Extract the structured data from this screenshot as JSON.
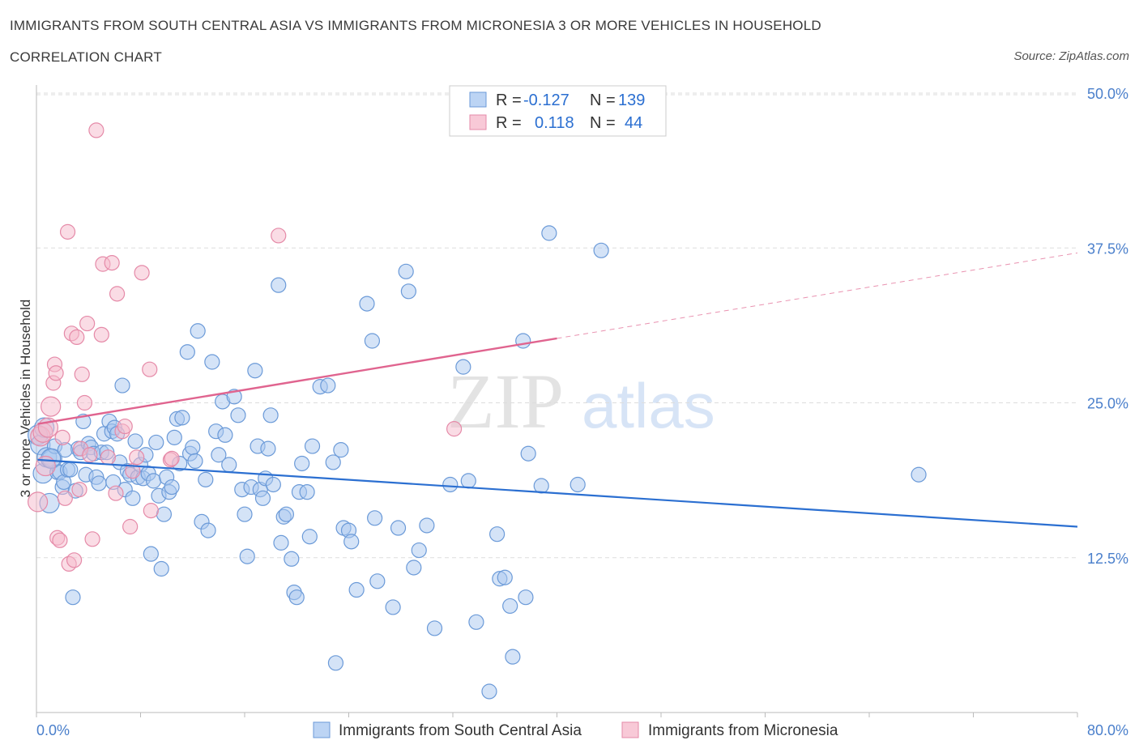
{
  "header": {
    "title": "IMMIGRANTS FROM SOUTH CENTRAL ASIA VS IMMIGRANTS FROM MICRONESIA 3 OR MORE VEHICLES IN HOUSEHOLD",
    "subtitle": "CORRELATION CHART",
    "source": "Source: ZipAtlas.com"
  },
  "watermark": {
    "zip": "ZIP",
    "atlas": "atlas"
  },
  "colors": {
    "blue_fill": "#a9c8f0",
    "blue_stroke": "#6b9ad8",
    "blue_line": "#2b6fd1",
    "pink_fill": "#f5b9cb",
    "pink_stroke": "#e58aa8",
    "pink_line": "#e0648f",
    "tick_text": "#4a7fcb",
    "grid": "#dddddd"
  },
  "legend": {
    "r_label": "R =",
    "n_label": "N =",
    "rows": [
      {
        "r_value": "-0.127",
        "n_value": "139"
      },
      {
        "r_value": "0.118",
        "n_value": "44"
      }
    ]
  },
  "chart_data": {
    "type": "scatter",
    "title": "IMMIGRANTS FROM SOUTH CENTRAL ASIA VS IMMIGRANTS FROM MICRONESIA 3 OR MORE VEHICLES IN HOUSEHOLD",
    "subtitle": "CORRELATION CHART",
    "xlabel": "",
    "ylabel": "3 or more Vehicles in Household",
    "xlim": [
      0,
      80
    ],
    "ylim": [
      0,
      50
    ],
    "x_tick_labels": [
      "0.0%",
      "80.0%"
    ],
    "y_ticks": [
      12.5,
      25.0,
      37.5,
      50.0
    ],
    "y_tick_labels": [
      "12.5%",
      "25.0%",
      "37.5%",
      "50.0%"
    ],
    "grid": true,
    "legend_position": "top-center",
    "series": [
      {
        "name": "Immigrants from South Central Asia",
        "color": "#a9c8f0",
        "r": -0.127,
        "n": 139,
        "trend": {
          "x0": 0.1,
          "y0": 20.4,
          "x1": 80.0,
          "y1": 15.0,
          "dashed_from": null
        },
        "points": [
          [
            0.1,
            22.4
          ],
          [
            0.3,
            21.6
          ],
          [
            0.5,
            19.3
          ],
          [
            0.6,
            23.0
          ],
          [
            0.8,
            20.6
          ],
          [
            1.0,
            16.9
          ],
          [
            1.2,
            20.5
          ],
          [
            1.4,
            21.5
          ],
          [
            1.6,
            19.4
          ],
          [
            1.8,
            19.4
          ],
          [
            2.0,
            18.2
          ],
          [
            2.1,
            18.6
          ],
          [
            2.4,
            19.6
          ],
          [
            2.6,
            19.6
          ],
          [
            2.8,
            9.3
          ],
          [
            3.0,
            17.9
          ],
          [
            3.2,
            21.3
          ],
          [
            3.4,
            21.0
          ],
          [
            3.6,
            23.5
          ],
          [
            3.8,
            19.2
          ],
          [
            4.0,
            21.7
          ],
          [
            4.2,
            21.4
          ],
          [
            4.4,
            20.9
          ],
          [
            4.6,
            19.0
          ],
          [
            4.8,
            18.5
          ],
          [
            5.0,
            21.0
          ],
          [
            5.2,
            22.5
          ],
          [
            5.4,
            21.0
          ],
          [
            5.6,
            23.5
          ],
          [
            5.8,
            22.7
          ],
          [
            6.0,
            23.0
          ],
          [
            6.2,
            22.5
          ],
          [
            6.4,
            20.2
          ],
          [
            6.6,
            26.4
          ],
          [
            6.8,
            18.0
          ],
          [
            7.0,
            19.5
          ],
          [
            7.2,
            19.2
          ],
          [
            7.4,
            17.3
          ],
          [
            7.6,
            21.9
          ],
          [
            7.8,
            19.0
          ],
          [
            8.0,
            20.0
          ],
          [
            8.2,
            18.9
          ],
          [
            8.4,
            20.8
          ],
          [
            8.6,
            19.3
          ],
          [
            8.8,
            12.8
          ],
          [
            9.0,
            18.7
          ],
          [
            9.2,
            21.8
          ],
          [
            9.4,
            17.5
          ],
          [
            9.6,
            11.6
          ],
          [
            9.8,
            16.0
          ],
          [
            10.0,
            19.0
          ],
          [
            10.2,
            17.8
          ],
          [
            10.4,
            18.2
          ],
          [
            10.6,
            22.2
          ],
          [
            10.8,
            23.7
          ],
          [
            11.0,
            20.1
          ],
          [
            11.2,
            23.8
          ],
          [
            11.6,
            29.1
          ],
          [
            11.8,
            20.9
          ],
          [
            12.0,
            21.4
          ],
          [
            12.2,
            20.3
          ],
          [
            12.4,
            30.8
          ],
          [
            12.7,
            15.4
          ],
          [
            13.0,
            18.8
          ],
          [
            13.2,
            14.7
          ],
          [
            13.5,
            28.3
          ],
          [
            13.8,
            22.7
          ],
          [
            14.0,
            20.8
          ],
          [
            14.3,
            25.1
          ],
          [
            14.5,
            22.4
          ],
          [
            14.8,
            20.0
          ],
          [
            15.2,
            25.5
          ],
          [
            15.5,
            24.0
          ],
          [
            15.8,
            18.0
          ],
          [
            16.0,
            16.0
          ],
          [
            16.2,
            12.6
          ],
          [
            16.5,
            18.2
          ],
          [
            16.8,
            27.6
          ],
          [
            17.0,
            21.5
          ],
          [
            17.2,
            18.0
          ],
          [
            17.4,
            17.3
          ],
          [
            17.6,
            18.9
          ],
          [
            17.8,
            21.3
          ],
          [
            18.0,
            24.0
          ],
          [
            18.2,
            18.4
          ],
          [
            18.6,
            34.5
          ],
          [
            18.8,
            13.7
          ],
          [
            19.0,
            15.8
          ],
          [
            19.2,
            16.0
          ],
          [
            19.6,
            12.4
          ],
          [
            19.8,
            9.7
          ],
          [
            20.0,
            9.3
          ],
          [
            20.2,
            17.8
          ],
          [
            20.4,
            20.1
          ],
          [
            20.8,
            17.8
          ],
          [
            21.0,
            14.2
          ],
          [
            21.2,
            21.5
          ],
          [
            21.8,
            26.3
          ],
          [
            22.4,
            26.4
          ],
          [
            22.8,
            20.2
          ],
          [
            23.0,
            4.0
          ],
          [
            23.4,
            21.2
          ],
          [
            23.6,
            14.9
          ],
          [
            24.0,
            14.7
          ],
          [
            24.2,
            13.8
          ],
          [
            24.6,
            9.9
          ],
          [
            25.4,
            33.0
          ],
          [
            25.8,
            30.0
          ],
          [
            26.0,
            15.7
          ],
          [
            26.2,
            10.6
          ],
          [
            27.4,
            8.5
          ],
          [
            27.8,
            14.9
          ],
          [
            28.4,
            35.6
          ],
          [
            28.6,
            34.0
          ],
          [
            29.0,
            11.7
          ],
          [
            29.4,
            13.1
          ],
          [
            30.0,
            15.1
          ],
          [
            30.6,
            6.8
          ],
          [
            31.8,
            18.4
          ],
          [
            32.8,
            27.9
          ],
          [
            33.2,
            18.7
          ],
          [
            33.8,
            7.3
          ],
          [
            34.8,
            1.7
          ],
          [
            35.4,
            14.4
          ],
          [
            35.6,
            10.8
          ],
          [
            36.0,
            10.9
          ],
          [
            36.4,
            8.6
          ],
          [
            36.6,
            4.5
          ],
          [
            37.4,
            30.0
          ],
          [
            37.6,
            9.3
          ],
          [
            37.8,
            20.9
          ],
          [
            38.8,
            18.3
          ],
          [
            39.4,
            38.7
          ],
          [
            41.6,
            18.4
          ],
          [
            43.4,
            37.3
          ],
          [
            67.8,
            19.2
          ],
          [
            1.1,
            20.5
          ],
          [
            2.2,
            21.2
          ],
          [
            5.9,
            18.6
          ]
        ]
      },
      {
        "name": "Immigrants from Micronesia",
        "color": "#f5b9cb",
        "r": 0.118,
        "n": 44,
        "trend": {
          "x0": 0.1,
          "y0": 23.3,
          "x1": 40.0,
          "y1": 30.2,
          "dashed_from": 40.0,
          "x2": 80.0,
          "y2": 37.1
        },
        "points": [
          [
            0.1,
            17.0
          ],
          [
            0.3,
            22.3
          ],
          [
            0.5,
            22.6
          ],
          [
            0.7,
            19.9
          ],
          [
            0.9,
            23.0
          ],
          [
            1.1,
            24.7
          ],
          [
            1.3,
            26.6
          ],
          [
            1.4,
            28.1
          ],
          [
            1.5,
            27.4
          ],
          [
            1.6,
            14.1
          ],
          [
            1.8,
            13.9
          ],
          [
            2.0,
            22.2
          ],
          [
            2.2,
            17.3
          ],
          [
            2.4,
            38.8
          ],
          [
            2.5,
            12.0
          ],
          [
            2.7,
            30.6
          ],
          [
            2.9,
            12.3
          ],
          [
            3.1,
            30.3
          ],
          [
            3.3,
            18.0
          ],
          [
            3.4,
            21.3
          ],
          [
            3.5,
            27.3
          ],
          [
            3.7,
            25.0
          ],
          [
            3.9,
            31.4
          ],
          [
            4.1,
            20.8
          ],
          [
            4.3,
            14.0
          ],
          [
            4.6,
            47.0
          ],
          [
            5.0,
            30.5
          ],
          [
            5.1,
            36.2
          ],
          [
            5.5,
            20.6
          ],
          [
            5.8,
            36.3
          ],
          [
            6.1,
            17.7
          ],
          [
            6.2,
            33.8
          ],
          [
            6.6,
            22.7
          ],
          [
            6.8,
            23.1
          ],
          [
            7.2,
            15.0
          ],
          [
            7.4,
            19.5
          ],
          [
            7.7,
            20.6
          ],
          [
            8.1,
            35.5
          ],
          [
            8.7,
            27.7
          ],
          [
            8.8,
            16.3
          ],
          [
            10.3,
            20.4
          ],
          [
            10.4,
            20.5
          ],
          [
            18.6,
            38.5
          ],
          [
            32.1,
            22.9
          ]
        ]
      }
    ]
  },
  "bottom_legend": [
    {
      "label": "Immigrants from South Central Asia"
    },
    {
      "label": "Immigrants from Micronesia"
    }
  ]
}
